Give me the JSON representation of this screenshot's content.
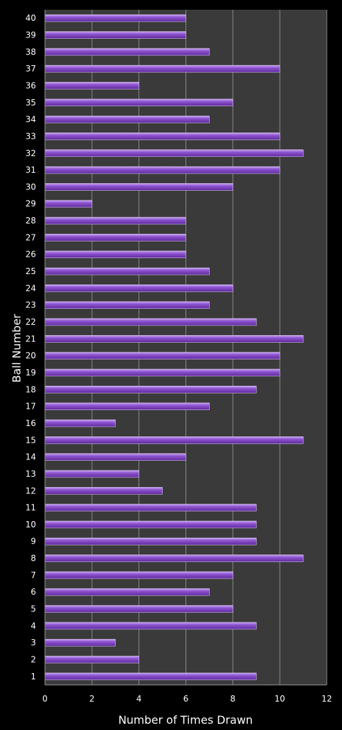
{
  "chart_data": {
    "type": "bar",
    "orientation": "horizontal",
    "xlabel": "Number of Times Drawn",
    "ylabel": "Ball Number",
    "xlim": [
      0,
      12
    ],
    "xticks": [
      0,
      2,
      4,
      6,
      8,
      10,
      12
    ],
    "grid": "vertical",
    "legend": "none",
    "colors": {
      "background": "#000000",
      "plot_area": "#3a3a3a",
      "bar": "#7b3fbe",
      "bar_highlight": "#b58ae8",
      "grid": "#8a8a8a"
    },
    "categories": [
      "1",
      "2",
      "3",
      "4",
      "5",
      "6",
      "7",
      "8",
      "9",
      "10",
      "11",
      "12",
      "13",
      "14",
      "15",
      "16",
      "17",
      "18",
      "19",
      "20",
      "21",
      "22",
      "23",
      "24",
      "25",
      "26",
      "27",
      "28",
      "29",
      "30",
      "31",
      "32",
      "33",
      "34",
      "35",
      "36",
      "37",
      "38",
      "39",
      "40"
    ],
    "values": [
      9,
      4,
      3,
      9,
      8,
      7,
      8,
      11,
      9,
      9,
      9,
      5,
      4,
      6,
      11,
      3,
      7,
      9,
      10,
      10,
      11,
      9,
      7,
      8,
      7,
      6,
      6,
      6,
      2,
      8,
      10,
      11,
      10,
      7,
      8,
      4,
      10,
      7,
      6,
      6
    ]
  }
}
